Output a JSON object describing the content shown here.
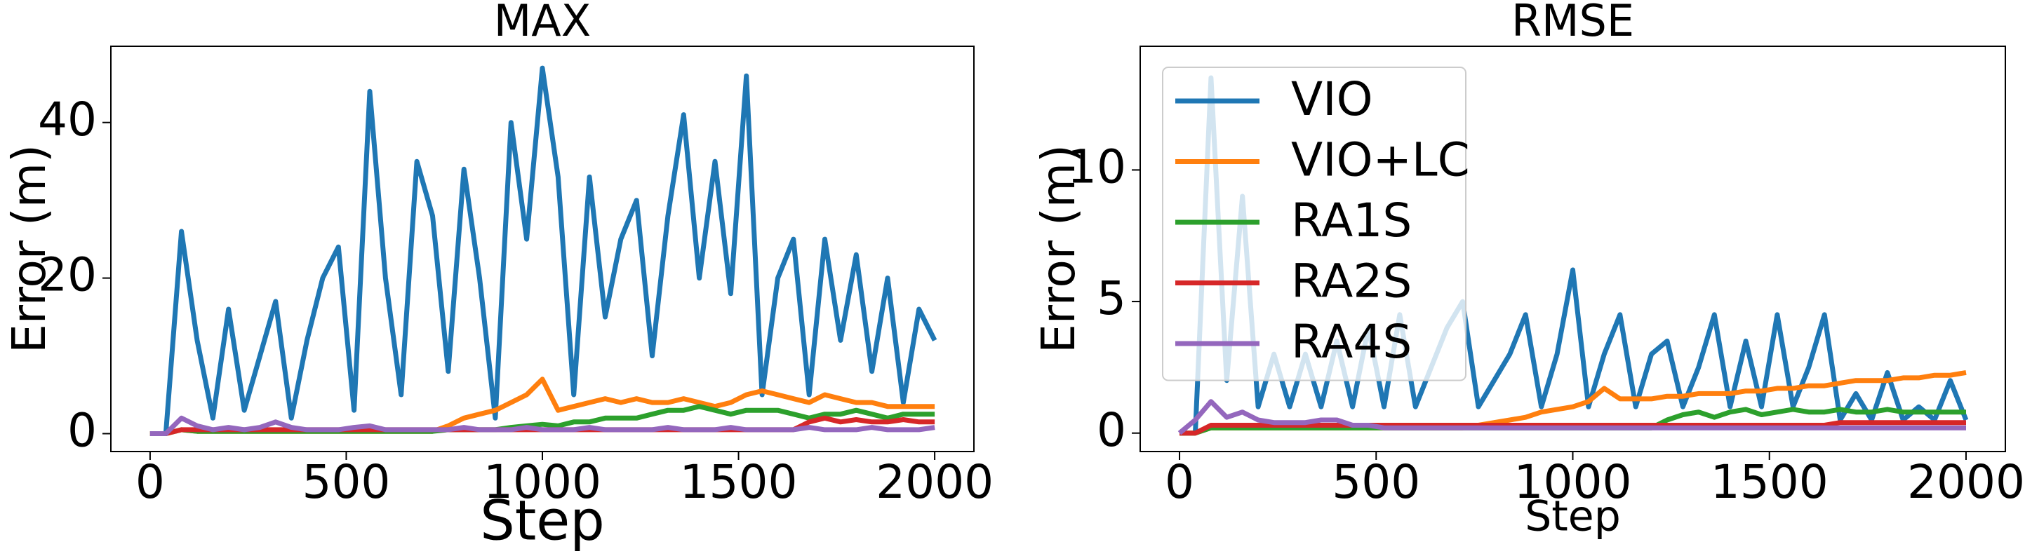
{
  "chart_data": [
    {
      "type": "line",
      "title": "MAX",
      "xlabel": "Step",
      "ylabel": "Error (m)",
      "x": [
        0,
        40,
        80,
        120,
        160,
        200,
        240,
        280,
        320,
        360,
        400,
        440,
        480,
        520,
        560,
        600,
        640,
        680,
        720,
        760,
        800,
        840,
        880,
        920,
        960,
        1000,
        1040,
        1080,
        1120,
        1160,
        1200,
        1240,
        1280,
        1320,
        1360,
        1400,
        1440,
        1480,
        1520,
        1560,
        1600,
        1640,
        1680,
        1720,
        1760,
        1800,
        1840,
        1880,
        1920,
        1960,
        2000
      ],
      "series": [
        {
          "color": "#1f77b4",
          "values": [
            0,
            0,
            26,
            12,
            2,
            16,
            3,
            10,
            17,
            2,
            12,
            20,
            24,
            3,
            44,
            20,
            5,
            35,
            28,
            8,
            34,
            20,
            2,
            40,
            25,
            47,
            33,
            5,
            33,
            15,
            25,
            30,
            10,
            28,
            41,
            20,
            35,
            18,
            46,
            5,
            20,
            25,
            5,
            25,
            12,
            23,
            8,
            20,
            4,
            16,
            12
          ]
        },
        {
          "color": "#ff7f0e",
          "values": [
            0,
            0,
            0.5,
            0.3,
            0.3,
            0.3,
            0.3,
            0.3,
            0.3,
            0.3,
            0.3,
            0.3,
            0.3,
            0.3,
            0.3,
            0.3,
            0.3,
            0.3,
            0.3,
            1,
            2,
            2.5,
            3,
            4,
            5,
            7,
            3,
            3.5,
            4,
            4.5,
            4,
            4.5,
            4,
            4,
            4.5,
            4,
            3.5,
            4,
            5,
            5.5,
            5,
            4.5,
            4,
            5,
            4.5,
            4,
            4,
            3.5,
            3.5,
            3.5,
            3.5
          ]
        },
        {
          "color": "#2ca02c",
          "values": [
            0,
            0,
            0.5,
            0.3,
            0.3,
            0.3,
            0.3,
            0.3,
            0.3,
            0.3,
            0.3,
            0.3,
            0.3,
            0.3,
            0.3,
            0.3,
            0.3,
            0.3,
            0.3,
            0.5,
            0.5,
            0.5,
            0.5,
            0.8,
            1,
            1.2,
            1,
            1.5,
            1.5,
            2,
            2,
            2,
            2.5,
            3,
            3,
            3.5,
            3,
            2.5,
            3,
            3,
            3,
            2.5,
            2,
            2.5,
            2.5,
            3,
            2.5,
            2,
            2.5,
            2.5,
            2.5
          ]
        },
        {
          "color": "#d62728",
          "values": [
            0,
            0,
            0.5,
            0.5,
            0.5,
            0.5,
            0.5,
            0.5,
            0.5,
            0.5,
            0.5,
            0.5,
            0.5,
            0.5,
            0.5,
            0.5,
            0.5,
            0.5,
            0.5,
            0.5,
            0.5,
            0.5,
            0.5,
            0.5,
            0.5,
            0.5,
            0.5,
            0.5,
            0.5,
            0.5,
            0.5,
            0.5,
            0.5,
            0.5,
            0.5,
            0.5,
            0.5,
            0.5,
            0.5,
            0.5,
            0.5,
            0.5,
            1.5,
            2,
            1.5,
            1.8,
            1.5,
            1.5,
            1.8,
            1.5,
            1.5
          ]
        },
        {
          "color": "#9467bd",
          "values": [
            0,
            0,
            2,
            1,
            0.5,
            0.8,
            0.5,
            0.8,
            1.5,
            0.8,
            0.5,
            0.5,
            0.5,
            0.8,
            1,
            0.5,
            0.5,
            0.5,
            0.5,
            0.5,
            0.8,
            0.5,
            0.5,
            0.5,
            0.8,
            0.5,
            0.5,
            0.5,
            0.8,
            0.5,
            0.5,
            0.5,
            0.5,
            0.8,
            0.5,
            0.5,
            0.5,
            0.8,
            0.5,
            0.5,
            0.5,
            0.5,
            0.8,
            0.5,
            0.5,
            0.5,
            0.8,
            0.5,
            0.5,
            0.5,
            0.8
          ]
        }
      ],
      "xlim": [
        -100,
        2100
      ],
      "ylim": [
        -2.3,
        49.8
      ],
      "xticks": [
        0,
        500,
        1000,
        1500,
        2000
      ],
      "yticks": [
        0,
        20,
        40
      ]
    },
    {
      "type": "line",
      "title": "RMSE",
      "xlabel": "Step",
      "ylabel": "Error (m)",
      "x": [
        0,
        40,
        80,
        120,
        160,
        200,
        240,
        280,
        320,
        360,
        400,
        440,
        480,
        520,
        560,
        600,
        640,
        680,
        720,
        760,
        800,
        840,
        880,
        920,
        960,
        1000,
        1040,
        1080,
        1120,
        1160,
        1200,
        1240,
        1280,
        1320,
        1360,
        1400,
        1440,
        1480,
        1520,
        1560,
        1600,
        1640,
        1680,
        1720,
        1760,
        1800,
        1840,
        1880,
        1920,
        1960,
        2000
      ],
      "series": [
        {
          "name": "VIO",
          "color": "#1f77b4",
          "values": [
            0,
            0,
            13.5,
            2,
            9,
            1,
            3,
            1,
            3,
            1,
            3.5,
            1,
            4,
            1,
            4.5,
            1,
            2.5,
            4,
            5,
            1,
            2,
            3,
            4.5,
            1,
            3,
            6.2,
            1,
            3,
            4.5,
            1,
            3,
            3.5,
            1,
            2.5,
            4.5,
            1,
            3.5,
            1,
            4.5,
            1,
            2.5,
            4.5,
            0.5,
            1.5,
            0.5,
            2.3,
            0.5,
            1,
            0.5,
            2,
            0.5
          ]
        },
        {
          "name": "VIO+LC",
          "color": "#ff7f0e",
          "values": [
            0,
            0,
            0.2,
            0.2,
            0.2,
            0.2,
            0.2,
            0.2,
            0.2,
            0.2,
            0.2,
            0.2,
            0.2,
            0.2,
            0.2,
            0.2,
            0.2,
            0.2,
            0.2,
            0.3,
            0.4,
            0.5,
            0.6,
            0.8,
            0.9,
            1.0,
            1.2,
            1.7,
            1.3,
            1.3,
            1.3,
            1.4,
            1.4,
            1.5,
            1.5,
            1.5,
            1.6,
            1.6,
            1.7,
            1.7,
            1.8,
            1.8,
            1.9,
            2.0,
            2.0,
            2.0,
            2.1,
            2.1,
            2.2,
            2.2,
            2.3
          ]
        },
        {
          "name": "RA1S",
          "color": "#2ca02c",
          "values": [
            0,
            0,
            0.2,
            0.2,
            0.2,
            0.2,
            0.2,
            0.2,
            0.2,
            0.2,
            0.2,
            0.2,
            0.2,
            0.2,
            0.2,
            0.2,
            0.2,
            0.2,
            0.2,
            0.2,
            0.2,
            0.2,
            0.2,
            0.2,
            0.2,
            0.2,
            0.2,
            0.2,
            0.2,
            0.2,
            0.2,
            0.5,
            0.7,
            0.8,
            0.6,
            0.8,
            0.9,
            0.7,
            0.8,
            0.9,
            0.8,
            0.8,
            0.9,
            0.8,
            0.8,
            0.9,
            0.8,
            0.8,
            0.8,
            0.8,
            0.8
          ]
        },
        {
          "name": "RA2S",
          "color": "#d62728",
          "values": [
            0,
            0,
            0.3,
            0.3,
            0.3,
            0.3,
            0.3,
            0.3,
            0.3,
            0.3,
            0.3,
            0.3,
            0.3,
            0.3,
            0.3,
            0.3,
            0.3,
            0.3,
            0.3,
            0.3,
            0.3,
            0.3,
            0.3,
            0.3,
            0.3,
            0.3,
            0.3,
            0.3,
            0.3,
            0.3,
            0.3,
            0.3,
            0.3,
            0.3,
            0.3,
            0.3,
            0.3,
            0.3,
            0.3,
            0.3,
            0.3,
            0.3,
            0.4,
            0.4,
            0.4,
            0.4,
            0.4,
            0.4,
            0.4,
            0.4,
            0.4
          ]
        },
        {
          "name": "RA4S",
          "color": "#9467bd",
          "values": [
            0,
            0.5,
            1.2,
            0.6,
            0.8,
            0.5,
            0.4,
            0.4,
            0.4,
            0.5,
            0.5,
            0.3,
            0.3,
            0.2,
            0.2,
            0.2,
            0.2,
            0.2,
            0.2,
            0.2,
            0.2,
            0.2,
            0.2,
            0.2,
            0.2,
            0.2,
            0.2,
            0.2,
            0.2,
            0.2,
            0.2,
            0.2,
            0.2,
            0.2,
            0.2,
            0.2,
            0.2,
            0.2,
            0.2,
            0.2,
            0.2,
            0.2,
            0.2,
            0.2,
            0.2,
            0.2,
            0.2,
            0.2,
            0.2,
            0.2,
            0.2
          ]
        }
      ],
      "xlim": [
        -100,
        2100
      ],
      "ylim": [
        -0.7,
        14.7
      ],
      "xticks": [
        0,
        500,
        1000,
        1500,
        2000
      ],
      "yticks": [
        0,
        5,
        10
      ],
      "legend": "upper left"
    }
  ]
}
